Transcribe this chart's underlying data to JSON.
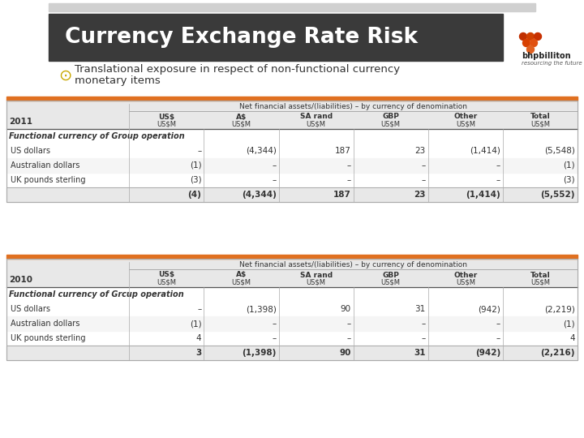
{
  "title": "Currency Exchange Rate Risk",
  "title_bg": "#3a3a3a",
  "title_fg": "#ffffff",
  "bullet_text_line1": "Translational exposure in respect of non-functional currency",
  "bullet_text_line2": "monetary items",
  "bullet_color": "#c8a800",
  "bg_color": "#ffffff",
  "orange_line_color": "#e07020",
  "table1_year": "2011",
  "table2_year": "2010",
  "col_header_span": "Net financial assets/(liabilities) – by currency of denomination",
  "col_headers": [
    "US$\nUS$M",
    "A$\nUS$M",
    "SA rand\nUS$M",
    "GBP\nUS$M",
    "Other\nUS$M",
    "Total\nUS$M"
  ],
  "row_label_bold": "Functional currency of Group operation",
  "row_label_bold2": "Functional currency of Grcup operation",
  "row_labels": [
    "US dollars",
    "Australian dollars",
    "UK pounds sterling"
  ],
  "table1_data": [
    [
      "–",
      "(4,344)",
      "187",
      "23",
      "(1,414)",
      "(5,548)"
    ],
    [
      "(1)",
      "–",
      "–",
      "–",
      "–",
      "(1)"
    ],
    [
      "(3)",
      "–",
      "–",
      "–",
      "–",
      "(3)"
    ],
    [
      "(4)",
      "(4,344)",
      "187",
      "23",
      "(1,414)",
      "(5,552)"
    ]
  ],
  "table2_data": [
    [
      "–",
      "(1,398)",
      "90",
      "31",
      "(942)",
      "(2,219)"
    ],
    [
      "(1)",
      "–",
      "–",
      "–",
      "–",
      "(1)"
    ],
    [
      "4",
      "–",
      "–",
      "–",
      "–",
      "4"
    ],
    [
      "3",
      "(1,398)",
      "90",
      "31",
      "(942)",
      "(2,216)"
    ]
  ],
  "header_bg": "#e8e8e8",
  "separator_color": "#aaaaaa",
  "table_border": "#cccccc",
  "total_row_bg": "#e8e8e8"
}
